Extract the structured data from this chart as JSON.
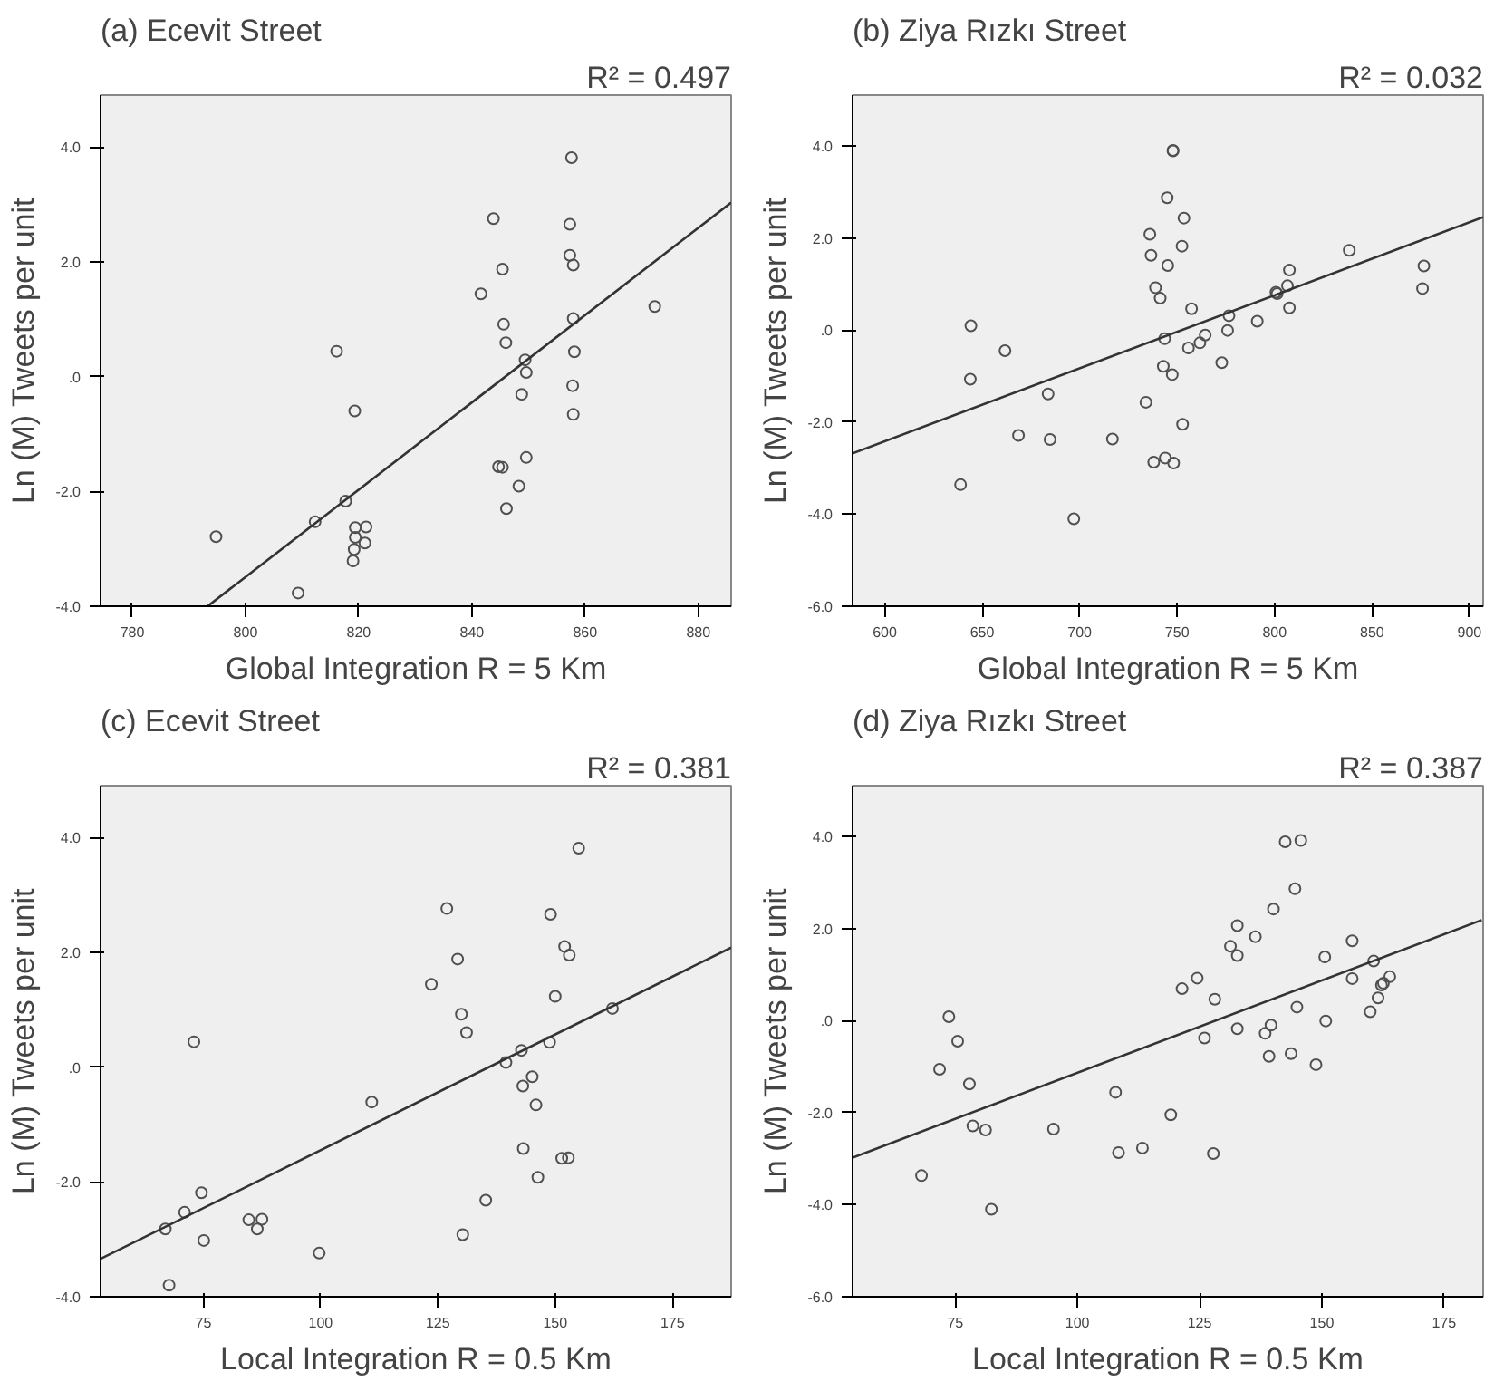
{
  "chart_data": [
    {
      "type": "scatter",
      "title": "(a) Ecevit Street",
      "annotations": [
        "R² = 0.497"
      ],
      "xlabel": "Global Integration R = 5 Km",
      "ylabel": "Ln (M) Tweets per unit",
      "xlim": [
        774.4,
        885.8
      ],
      "ylim": [
        -4.0,
        4.9
      ],
      "xticks": [
        780,
        800,
        820,
        840,
        860,
        880
      ],
      "yticks": [
        {
          "value": 4,
          "label": "4.0"
        },
        {
          "value": 2,
          "label": "2.0"
        },
        {
          "value": 0,
          "label": ".0"
        },
        {
          "value": -2,
          "label": "-2.0"
        },
        {
          "value": -4,
          "label": "-4.0"
        }
      ],
      "series": [
        {
          "color": "#505050",
          "marker": "circle",
          "x": [
            857.6,
            843.8,
            857.3,
            857.3,
            857.9,
            845.4,
            841.6,
            872.3,
            857.9,
            845.6,
            846.0,
            816.1,
            858.1,
            849.4,
            849.6,
            857.8,
            848.8,
            819.3,
            857.9,
            849.6,
            844.7,
            845.4,
            848.3,
            846.1,
            817.7,
            812.3,
            794.8,
            819.4,
            821.3,
            819.4,
            821.1,
            819.2,
            819.0,
            809.3
          ],
          "values": [
            3.81,
            2.75,
            2.65,
            2.11,
            1.94,
            1.87,
            1.44,
            1.22,
            1.01,
            0.91,
            0.59,
            0.44,
            0.43,
            0.29,
            0.07,
            -0.16,
            -0.31,
            -0.6,
            -0.66,
            -1.41,
            -1.57,
            -1.58,
            -1.91,
            -2.3,
            -2.17,
            -2.53,
            -2.79,
            -2.63,
            -2.62,
            -2.8,
            -2.9,
            -3.01,
            -3.21,
            -3.77
          ]
        },
        {
          "type": "line",
          "color": "#333333",
          "x": [
            793.3,
            885.8
          ],
          "values": [
            -4.0,
            3.03
          ]
        }
      ]
    },
    {
      "type": "scatter",
      "title": "(b) Ziya Rızkı Street",
      "annotations": [
        "R² = 0.032"
      ],
      "xlabel": "Global Integration R = 5 Km",
      "ylabel": "Ln (M) Tweets per unit",
      "xlim": [
        583.5,
        907
      ],
      "ylim": [
        -6.0,
        5.1
      ],
      "xticks": [
        600,
        650,
        700,
        750,
        800,
        850,
        900
      ],
      "yticks": [
        {
          "value": 4,
          "label": "4.0"
        },
        {
          "value": 2,
          "label": "2.0"
        },
        {
          "value": 0,
          "label": ".0"
        },
        {
          "value": -2,
          "label": "-2.0"
        },
        {
          "value": -4,
          "label": "-4.0"
        },
        {
          "value": -6,
          "label": "-6.0"
        }
      ],
      "series": [
        {
          "color": "#505050",
          "marker": "circle",
          "x": [
            747.9,
            747.9,
            744.9,
            753.5,
            736.0,
            752.5,
            736.6,
            745.2,
            738.9,
            741.3,
            757.4,
            776.6,
            807.6,
            838.3,
            876.6,
            875.9,
            806.6,
            800.7,
            801.3,
            807.6,
            791.1,
            775.9,
            764.4,
            761.7,
            755.8,
            743.6,
            772.9,
            742.9,
            747.5,
            644.2,
            643.9,
            661.7,
            683.8,
            734.0,
            752.8,
            668.6,
            684.8,
            716.8,
            738.0,
            743.9,
            748.2,
            638.9,
            697.0
          ],
          "values": [
            3.89,
            3.9,
            2.87,
            2.43,
            2.08,
            1.82,
            1.62,
            1.4,
            0.92,
            0.69,
            0.46,
            0.31,
            1.3,
            1.73,
            1.39,
            0.9,
            0.96,
            0.82,
            0.79,
            0.48,
            0.19,
            -0.01,
            -0.11,
            -0.28,
            -0.39,
            -0.19,
            -0.71,
            -0.79,
            -0.97,
            0.09,
            -1.07,
            -0.45,
            -1.39,
            -1.57,
            -2.05,
            -2.29,
            -2.38,
            -2.37,
            -2.87,
            -2.78,
            -2.89,
            -3.36,
            -4.1
          ]
        },
        {
          "type": "line",
          "color": "#333333",
          "x": [
            583.5,
            906.9
          ],
          "values": [
            -2.68,
            2.45
          ]
        }
      ]
    },
    {
      "type": "scatter",
      "title": "(c) Ecevit Street",
      "annotations": [
        "R² = 0.381"
      ],
      "xlabel": "Local Integration R = 0.5 Km",
      "ylabel": "Ln (M) Tweets per unit",
      "xlim": [
        53.1,
        187.5
      ],
      "ylim": [
        -4.0,
        4.9
      ],
      "xticks": [
        75,
        100,
        125,
        150,
        175
      ],
      "yticks": [
        {
          "value": 4,
          "label": "4.0"
        },
        {
          "value": 2,
          "label": "2.0"
        },
        {
          "value": 0,
          "label": ".0"
        },
        {
          "value": -2,
          "label": "-2.0"
        },
        {
          "value": -4,
          "label": "-4.0"
        }
      ],
      "series": [
        {
          "color": "#505050",
          "marker": "circle",
          "x": [
            155.0,
            126.9,
            149.0,
            152.0,
            153.0,
            129.2,
            123.6,
            150.0,
            130.0,
            131.1,
            162.2,
            73.0,
            148.8,
            142.8,
            139.5,
            143.1,
            145.1,
            145.9,
            110.9,
            143.2,
            151.4,
            152.8,
            146.3,
            135.2,
            74.6,
            71.0,
            66.9,
            75.1,
            84.7,
            87.5,
            86.5,
            130.3,
            99.7,
            67.7
          ],
          "values": [
            3.81,
            2.76,
            2.66,
            2.1,
            1.95,
            1.88,
            1.44,
            1.23,
            0.92,
            0.6,
            1.02,
            0.44,
            0.43,
            0.29,
            0.08,
            -0.33,
            -0.17,
            -0.66,
            -0.61,
            -1.42,
            -1.59,
            -1.58,
            -1.92,
            -2.32,
            -2.19,
            -2.53,
            -2.82,
            -3.02,
            -2.66,
            -2.65,
            -2.82,
            -2.92,
            -3.24,
            -3.8
          ]
        },
        {
          "type": "line",
          "color": "#333333",
          "x": [
            53.1,
            187.5
          ],
          "values": [
            -3.34,
            2.08
          ]
        }
      ]
    },
    {
      "type": "scatter",
      "title": "(d) Ziya Rızkı Street",
      "annotations": [
        "R² = 0.387"
      ],
      "xlabel": "Local Integration R = 0.5 Km",
      "ylabel": "Ln (M) Tweets per unit",
      "xlim": [
        54.0,
        183
      ],
      "ylim": [
        -6.0,
        5.1
      ],
      "xticks": [
        75,
        100,
        125,
        150,
        175
      ],
      "yticks": [
        {
          "value": 4,
          "label": "4.0"
        },
        {
          "value": 2,
          "label": "2.0"
        },
        {
          "value": 0,
          "label": ".0"
        },
        {
          "value": -2,
          "label": "-2.0"
        },
        {
          "value": -4,
          "label": "-4.0"
        },
        {
          "value": -6,
          "label": "-6.0"
        }
      ],
      "series": [
        {
          "color": "#505050",
          "marker": "circle",
          "x": [
            142.5,
            145.7,
            144.5,
            140.1,
            132.7,
            136.4,
            131.3,
            132.7,
            156.2,
            150.6,
            160.6,
            156.2,
            163.9,
            162.6,
            162.2,
            161.5,
            159.9,
            124.5,
            121.4,
            128.1,
            144.9,
            150.8,
            132.7,
            139.6,
            138.4,
            126.0,
            139.2,
            143.7,
            148.8,
            73.7,
            75.5,
            71.8,
            77.9,
            78.6,
            81.2,
            95.1,
            107.8,
            119.1,
            108.4,
            113.3,
            127.8,
            68.1,
            82.4
          ],
          "values": [
            3.88,
            3.91,
            2.86,
            2.42,
            2.06,
            1.82,
            1.61,
            1.41,
            1.73,
            1.38,
            1.29,
            0.91,
            0.95,
            0.81,
            0.77,
            0.49,
            0.19,
            0.92,
            0.69,
            0.46,
            0.29,
            -0.01,
            -0.18,
            -0.1,
            -0.28,
            -0.38,
            -0.78,
            -0.72,
            -0.96,
            0.08,
            -0.45,
            -1.06,
            -1.38,
            -2.29,
            -2.38,
            -2.36,
            -1.56,
            -2.05,
            -2.87,
            -2.77,
            -2.89,
            -3.37,
            -4.1
          ]
        },
        {
          "type": "line",
          "color": "#333333",
          "x": [
            54.0,
            182.7
          ],
          "values": [
            -2.98,
            2.18
          ]
        }
      ]
    }
  ]
}
